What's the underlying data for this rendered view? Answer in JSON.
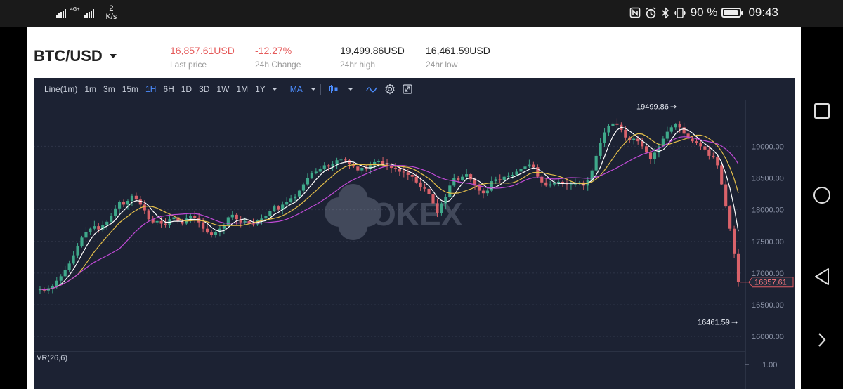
{
  "statusbar": {
    "network": "4G+",
    "speed_value": "2",
    "speed_unit": "K/s",
    "battery": "90 %",
    "battery_level": 0.9,
    "time": "09:43",
    "icons": [
      "signal-icon",
      "nfc-icon",
      "alarm-icon",
      "bluetooth-icon",
      "vibrate-icon",
      "battery-icon"
    ]
  },
  "ticker": {
    "pair": "BTC/USD",
    "last_price": {
      "value": "16,857.61USD",
      "label": "Last price"
    },
    "change": {
      "value": "-12.27%",
      "label": "24h Change"
    },
    "high": {
      "value": "19,499.86USD",
      "label": "24hr high"
    },
    "low": {
      "value": "16,461.59USD",
      "label": "24hr low"
    }
  },
  "toolbar": {
    "line": "Line(1m)",
    "intervals": [
      "1m",
      "3m",
      "15m",
      "1H",
      "6H",
      "1D",
      "3D",
      "1W",
      "1M",
      "1Y"
    ],
    "active_interval": "1H",
    "indicator": "MA"
  },
  "chart_data": {
    "type": "candlestick",
    "watermark": "OKEX",
    "ylim": [
      15780,
      19680
    ],
    "y_ticks": [
      "19000.00",
      "18500.00",
      "18000.00",
      "17500.00",
      "17000.00",
      "16500.00",
      "16000.00"
    ],
    "max_label": "19499.86",
    "min_label": "16461.59",
    "last_label": "16857.61",
    "last_value": 16857.61,
    "sub_indicator": "VR(26,6)",
    "sub_tick": "1.00",
    "colors": {
      "up": "#3fa88a",
      "down": "#d9626a",
      "ma_fast": "#ffffff",
      "ma_mid": "#e6c04a",
      "ma_slow": "#c04ad6",
      "background": "#1c2233",
      "grid": "#2e3548"
    },
    "closes": [
      16750,
      16725,
      16760,
      16800,
      16880,
      16950,
      17050,
      17150,
      17280,
      17420,
      17560,
      17650,
      17700,
      17740,
      17690,
      17760,
      17810,
      17900,
      18020,
      18120,
      18080,
      18140,
      18220,
      18160,
      18080,
      17990,
      17850,
      17800,
      17820,
      17780,
      17760,
      17850,
      17880,
      17820,
      17780,
      17860,
      17900,
      17870,
      17800,
      17700,
      17640,
      17600,
      17650,
      17700,
      17760,
      17880,
      17920,
      17850,
      17800,
      17820,
      17780,
      17770,
      17830,
      17860,
      17900,
      17980,
      18050,
      18000,
      18080,
      18120,
      18180,
      18210,
      18300,
      18400,
      18500,
      18580,
      18600,
      18650,
      18700,
      18680,
      18720,
      18780,
      18790,
      18780,
      18720,
      18680,
      18620,
      18660,
      18640,
      18700,
      18750,
      18770,
      18720,
      18690,
      18660,
      18640,
      18600,
      18590,
      18550,
      18520,
      18430,
      18350,
      18330,
      18250,
      18100,
      17950,
      18100,
      18200,
      18380,
      18500,
      18470,
      18520,
      18560,
      18480,
      18380,
      18300,
      18260,
      18300,
      18450,
      18480,
      18470,
      18520,
      18540,
      18550,
      18600,
      18640,
      18680,
      18710,
      18670,
      18520,
      18430,
      18380,
      18400,
      18420,
      18440,
      18420,
      18400,
      18400,
      18420,
      18430,
      18380,
      18460,
      18620,
      18850,
      19050,
      19220,
      19320,
      19360,
      19340,
      19260,
      19140,
      19100,
      19120,
      19080,
      19000,
      18900,
      18800,
      18900,
      19000,
      19120,
      19230,
      19300,
      19350,
      19300,
      19200,
      19120,
      19080,
      19060,
      19000,
      18950,
      18850,
      18830,
      18700,
      18400,
      18050,
      17700,
      17300,
      16857.61
    ]
  }
}
